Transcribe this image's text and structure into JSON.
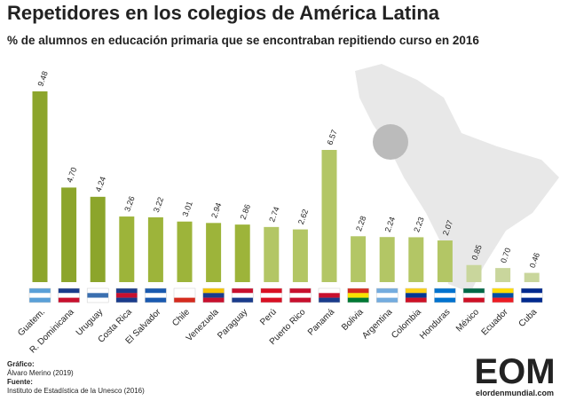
{
  "chart_data": {
    "type": "bar",
    "title": "Repetidores en los colegios de América Latina",
    "subtitle": "% de alumnos en educación primaria que se encontraban repitiendo curso en 2016",
    "categories": [
      "Guatem.",
      "R. Dominicana",
      "Uruguay",
      "Costa Rica",
      "El Salvador",
      "Chile",
      "Venezuela",
      "Paraguay",
      "Perú",
      "Puerto Rico",
      "Panamá",
      "Bolivia",
      "Argentina",
      "Colombia",
      "Honduras",
      "México",
      "Ecuador",
      "Cuba"
    ],
    "values": [
      9.48,
      4.7,
      4.24,
      3.26,
      3.22,
      3.01,
      2.94,
      2.86,
      2.74,
      2.62,
      6.57,
      2.28,
      2.24,
      2.23,
      2.07,
      0.85,
      0.7,
      0.46
    ],
    "value_labels": [
      "9.48",
      "4.70",
      "4.24",
      "3.26",
      "3.22",
      "3.01",
      "2.94",
      "2.86",
      "2.74",
      "2.62",
      "6.57",
      "2.28",
      "2.24",
      "2.23",
      "2.07",
      "0.85",
      "0.70",
      "0.46"
    ],
    "colors": [
      "#8ca52b",
      "#8ca52b",
      "#8ca52b",
      "#9db43a",
      "#9db43a",
      "#9db43a",
      "#9db43a",
      "#9db43a",
      "#b3c665",
      "#b3c665",
      "#b3c665",
      "#b3c665",
      "#b3c665",
      "#b3c665",
      "#b3c665",
      "#c9d69c",
      "#c9d69c",
      "#c9d69c"
    ],
    "footer": {
      "graphic_label": "Gráfico:",
      "graphic": "Álvaro Merino (2019)",
      "source_label": "Fuente:",
      "source": "Instituto de Estadística de la Unesco (2016)"
    },
    "logo": {
      "mark": "EOM",
      "site": "elordenmundial.com"
    }
  }
}
